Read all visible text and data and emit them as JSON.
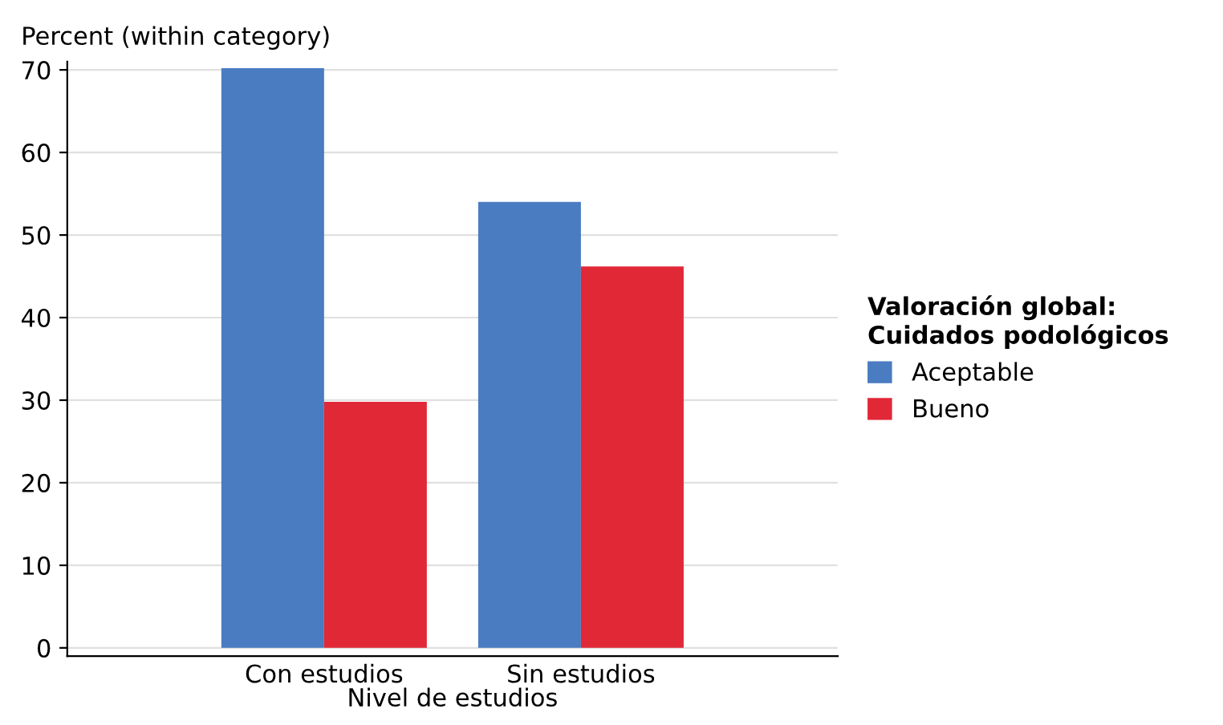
{
  "chart_data": {
    "type": "bar",
    "ylabel": "Percent (within category)",
    "xlabel": "Nivel de estudios",
    "legend_title": "Valoración global:\nCuidados podológicos",
    "categories": [
      "Con estudios",
      "Sin estudios"
    ],
    "series": [
      {
        "name": "Aceptable",
        "color": "#4a7cc1",
        "values": [
          70.2,
          54.0
        ]
      },
      {
        "name": "Bueno",
        "color": "#e12837",
        "values": [
          29.8,
          46.2
        ]
      }
    ],
    "ylim": [
      -1,
      71
    ],
    "yticks": [
      0,
      10,
      20,
      30,
      40,
      50,
      60,
      70
    ],
    "grid": "y",
    "legend": "right"
  }
}
